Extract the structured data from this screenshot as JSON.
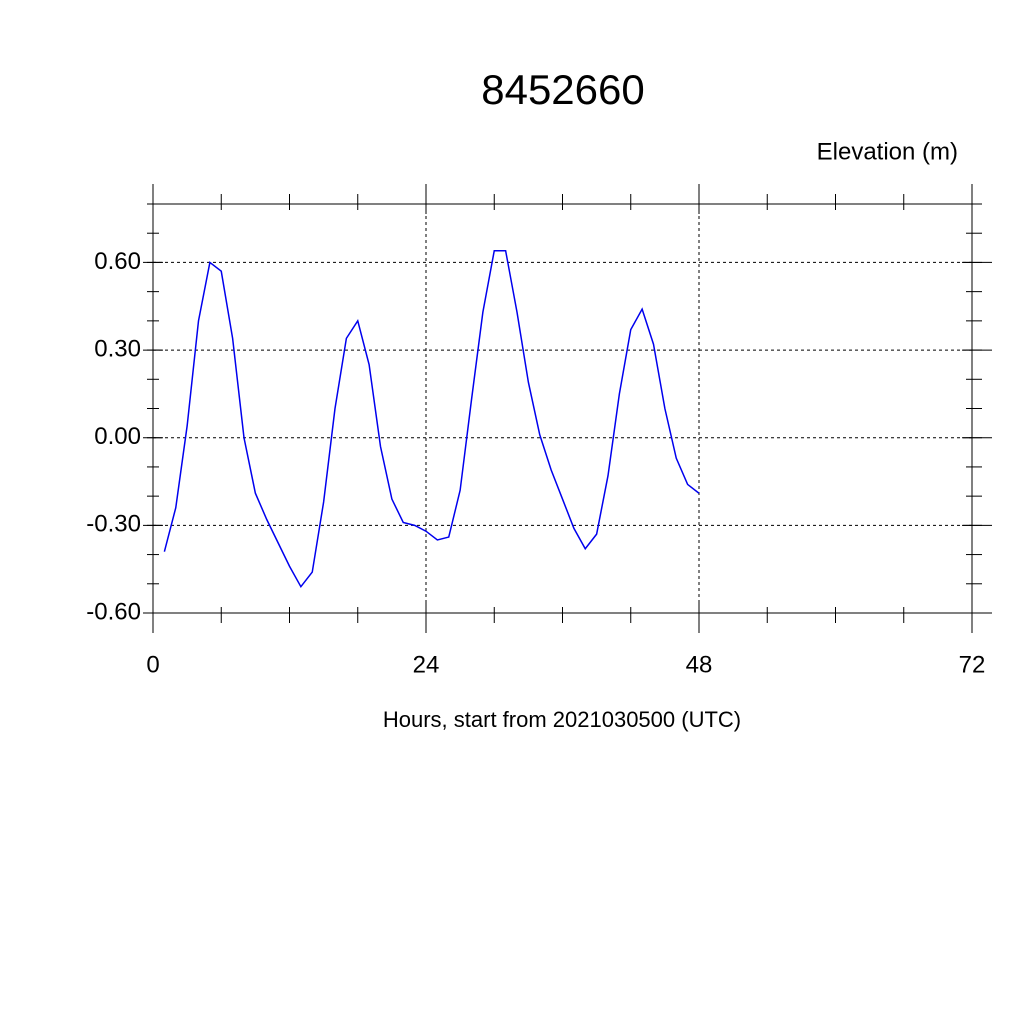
{
  "chart_data": {
    "type": "line",
    "title": "8452660",
    "ylabel": "Elevation (m)",
    "xlabel": "Hours, start from 2021030500 (UTC)",
    "x": [
      1,
      2,
      3,
      4,
      5,
      6,
      7,
      8,
      9,
      10,
      11,
      12,
      13,
      14,
      15,
      16,
      17,
      18,
      19,
      20,
      21,
      22,
      23,
      24,
      25,
      26,
      27,
      28,
      29,
      30,
      31,
      32,
      33,
      34,
      35,
      36,
      37,
      38,
      39,
      40,
      41,
      42,
      43,
      44,
      45,
      46,
      47,
      48
    ],
    "series": [
      {
        "name": "Elevation",
        "color": "#0000ee",
        "values": [
          -0.39,
          -0.24,
          0.04,
          0.4,
          0.6,
          0.57,
          0.34,
          0.0,
          -0.19,
          -0.28,
          -0.36,
          -0.44,
          -0.51,
          -0.46,
          -0.22,
          0.1,
          0.34,
          0.4,
          0.25,
          -0.03,
          -0.21,
          -0.29,
          -0.3,
          -0.32,
          -0.35,
          -0.34,
          -0.18,
          0.13,
          0.43,
          0.64,
          0.64,
          0.43,
          0.19,
          0.01,
          -0.11,
          -0.21,
          -0.31,
          -0.38,
          -0.33,
          -0.13,
          0.15,
          0.37,
          0.44,
          0.32,
          0.1,
          -0.07,
          -0.16,
          -0.19
        ]
      }
    ],
    "xlim": [
      0,
      72
    ],
    "xticks": [
      0,
      24,
      48,
      72
    ],
    "ylim": [
      -0.6,
      0.8
    ],
    "yticks": [
      {
        "value": -0.6,
        "label": "-0.60"
      },
      {
        "value": -0.3,
        "label": "-0.30"
      },
      {
        "value": 0,
        "label": "0.00"
      },
      {
        "value": 0.3,
        "label": "0.30"
      },
      {
        "value": 0.6,
        "label": "0.60"
      }
    ],
    "grid": true
  }
}
